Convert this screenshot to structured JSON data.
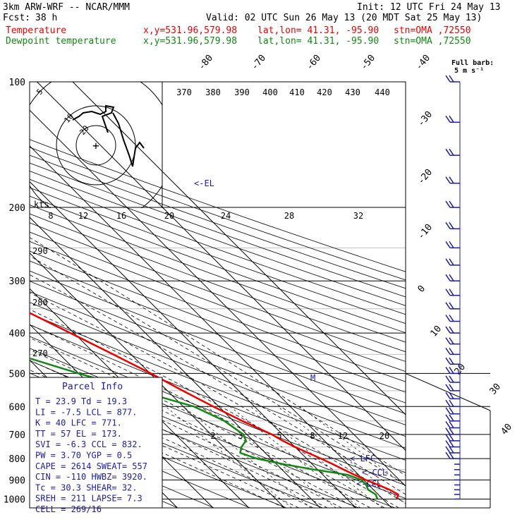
{
  "header": {
    "model": "3km ARW-WRF -- NCAR/MMM",
    "init": "Init: 12 UTC Fri 24 May 13",
    "fcst_label": "Fcst:",
    "fcst_hours": "38 h",
    "valid": "Valid: 02 UTC Sun 26 May 13 (20 MDT Sat 25 May 13)",
    "temp_line": {
      "label": "Temperature",
      "xy": "x,y=531.96,579.98",
      "latlon": "lat,lon= 41.31, -95.90",
      "stn": "stn=OMA ,72550"
    },
    "dew_line": {
      "label": "Dewpoint temperature",
      "xy": "x,y=531.96,579.98",
      "latlon": "lat,lon= 41.31, -95.90",
      "stn": "stn=OMA ,72550"
    }
  },
  "colors": {
    "temperature": "#ee0000",
    "dewpoint": "#118811",
    "wind": "#1c1ca8",
    "text": "#000000",
    "panel_text": "#1c1ca8"
  },
  "full_barb_label": "Full barb:",
  "full_barb_value": "5 m s⁻¹",
  "hodo": {
    "kts_label": "kts",
    "ring_labels": [
      "5",
      "10",
      "20"
    ],
    "center_symbol": "+"
  },
  "panel": {
    "title": "Parcel Info",
    "lines": [
      "T  =   23.9 Td =  19.3",
      "LI =   -7.5 LCL =  877.",
      "K  =     40 LFC =  771.",
      "TT =     57 EL  =  173.",
      "SVI =  -6.3 CCL =  832.",
      "PW =   3.70 YGP =   0.5",
      "CAPE = 2614 SWEAT=  557",
      "CIN =  -110 HWBZ= 3920.",
      "Tc =   30.3 SHEAR=  32.",
      "SREH =  211 LAPSE=  7.3",
      "CELL = 269/16"
    ]
  },
  "level_labels": {
    "el": "<-EL",
    "lfc": "<-LFC",
    "ccl": "<-CCL",
    "lcl": "<-LCL",
    "m": "M"
  },
  "chart_data": {
    "type": "line",
    "title": "",
    "xlabel": "",
    "ylabel": "",
    "pressure_ticks": [
      100,
      200,
      300,
      400,
      500,
      600,
      700,
      800,
      900,
      1000
    ],
    "plim": [
      1000,
      100
    ],
    "isotherm_labels": [
      "-80",
      "-70",
      "-60",
      "-50",
      "-40",
      "-30",
      "-20",
      "-10",
      "0",
      "10",
      "20",
      "30",
      "40"
    ],
    "theta_labels": [
      "370",
      "380",
      "390",
      "400",
      "410",
      "420",
      "430",
      "440"
    ],
    "mixing_ratio_labels": [
      "2",
      "3",
      "5",
      "8",
      "12",
      "20"
    ],
    "upper_axis_ticks": [
      "8",
      "12",
      "16",
      "20",
      "24",
      "28",
      "32"
    ],
    "theta_e_labels": [
      "290",
      "280",
      "270"
    ],
    "series": [
      {
        "name": "Temperature",
        "pressure": [
          1000,
          975,
          950,
          925,
          900,
          875,
          850,
          825,
          800,
          775,
          750,
          725,
          700,
          650,
          600,
          550,
          500,
          450,
          400,
          350,
          300,
          250,
          225,
          200,
          180,
          170,
          150,
          130,
          120,
          110,
          100
        ],
        "values": [
          23.9,
          25.6,
          24.5,
          22.7,
          20.6,
          18.9,
          17.3,
          15.8,
          14.0,
          12.0,
          10.0,
          8.3,
          7.0,
          2.5,
          -1.6,
          -5.7,
          -9.8,
          -15.0,
          -21.0,
          -28.0,
          -36.0,
          -43.0,
          -48.0,
          -54.0,
          -60.5,
          -63.0,
          -64.5,
          -64.5,
          -63.0,
          -63.5,
          -62.5
        ]
      },
      {
        "name": "Dewpoint temperature",
        "pressure": [
          1000,
          975,
          950,
          925,
          900,
          875,
          850,
          825,
          800,
          775,
          750,
          725,
          700,
          650,
          600,
          550,
          500,
          450,
          400,
          350,
          300,
          250,
          220,
          200,
          190,
          170,
          150,
          130,
          120,
          110,
          100
        ],
        "values": [
          18.5,
          19.3,
          18.5,
          19.3,
          19.3,
          17.0,
          9.0,
          2.0,
          -4.0,
          -7.0,
          -5.0,
          -2.0,
          -1.0,
          -2.5,
          -7.0,
          -18.0,
          -30.0,
          -42.0,
          -52.0,
          -55.0,
          -50.0,
          -57.0,
          -64.0,
          -71.0,
          -74.0,
          -74.0,
          -78.0,
          -81.0,
          -84.0,
          -87.5,
          -89.5
        ]
      }
    ],
    "wind_barb_pressures": [
      1000,
      975,
      950,
      925,
      900,
      875,
      850,
      825,
      800,
      775,
      750,
      725,
      700,
      675,
      650,
      625,
      600,
      575,
      550,
      525,
      500,
      475,
      450,
      425,
      400,
      375,
      350,
      325,
      300,
      275,
      250,
      225,
      200,
      175,
      150,
      125,
      100
    ]
  }
}
